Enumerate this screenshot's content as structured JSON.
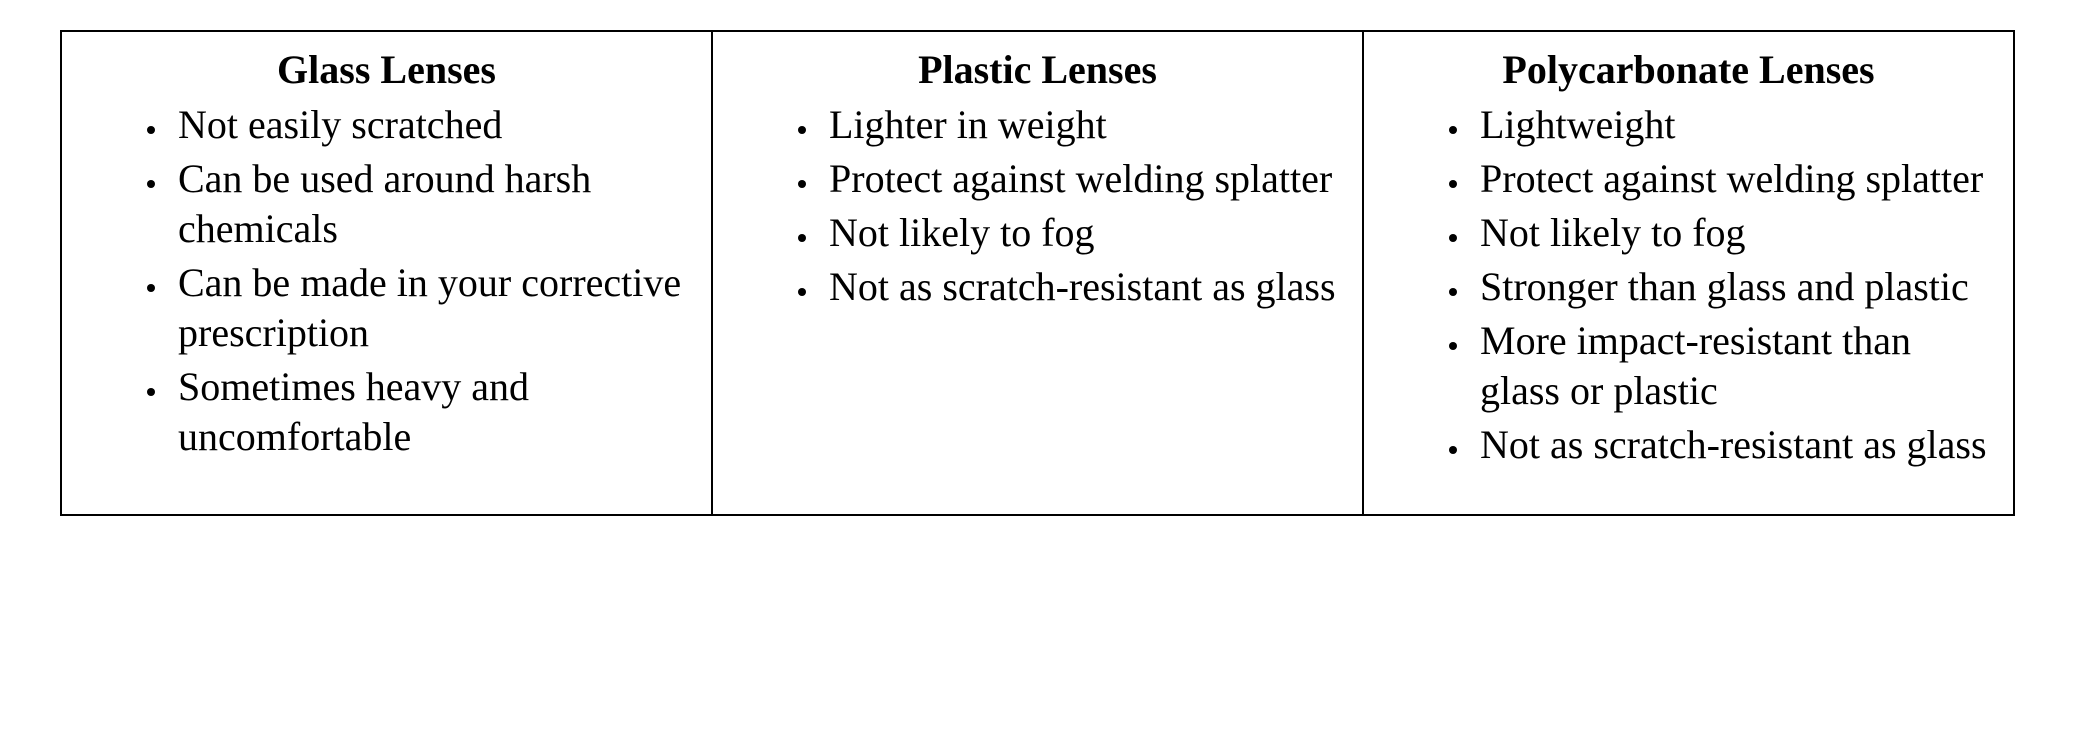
{
  "table": {
    "border_color": "#000000",
    "background_color": "#ffffff",
    "text_color": "#000000",
    "font_family": "Times New Roman",
    "header_fontsize_pt": 30,
    "body_fontsize_pt": 30,
    "columns": [
      {
        "header": "Glass Lenses",
        "items": [
          "Not easily scratched",
          "Can be used around harsh chemicals",
          "Can be made in your corrective prescription",
          "Sometimes heavy and uncomfortable"
        ]
      },
      {
        "header": "Plastic Lenses",
        "items": [
          "Lighter in weight",
          "Protect against welding splatter",
          "Not likely to fog",
          "Not as scratch-resistant as glass"
        ]
      },
      {
        "header": "Polycarbonate Lenses",
        "items": [
          "Lightweight",
          "Protect against welding splatter",
          "Not likely to fog",
          "Stronger than glass and plastic",
          "More impact-resistant than glass or plastic",
          "Not as scratch-resistant as glass"
        ]
      }
    ]
  }
}
